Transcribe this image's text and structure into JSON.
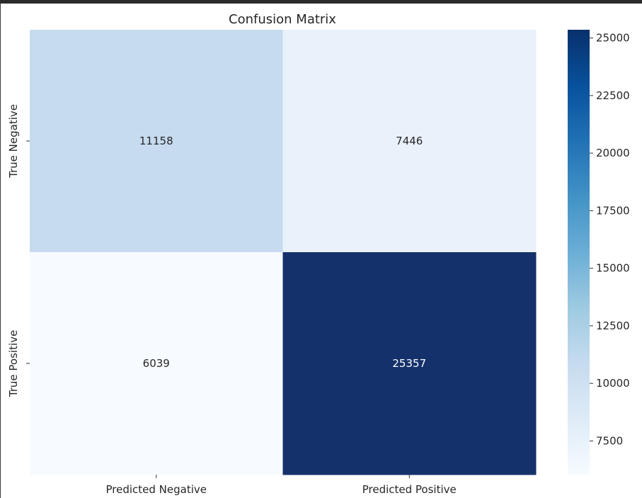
{
  "chart_data": {
    "type": "heatmap",
    "title": "Confusion Matrix",
    "row_labels": [
      "True Negative",
      "True Positive"
    ],
    "col_labels": [
      "Predicted Negative",
      "Predicted Positive"
    ],
    "values": [
      [
        11158,
        7446
      ],
      [
        6039,
        25357
      ]
    ],
    "colorscale": "Blues",
    "colorbar": {
      "range": [
        6039,
        25357
      ],
      "ticks": [
        7500,
        10000,
        12500,
        15000,
        17500,
        20000,
        22500,
        25000
      ]
    },
    "colors": {
      "cell_0_0": "#c6dbef",
      "cell_0_1": "#e9f2fb",
      "cell_1_0": "#f7fbff",
      "cell_1_1": "#15316c",
      "light_text": "#ffffff",
      "dark_text": "#262626"
    }
  }
}
